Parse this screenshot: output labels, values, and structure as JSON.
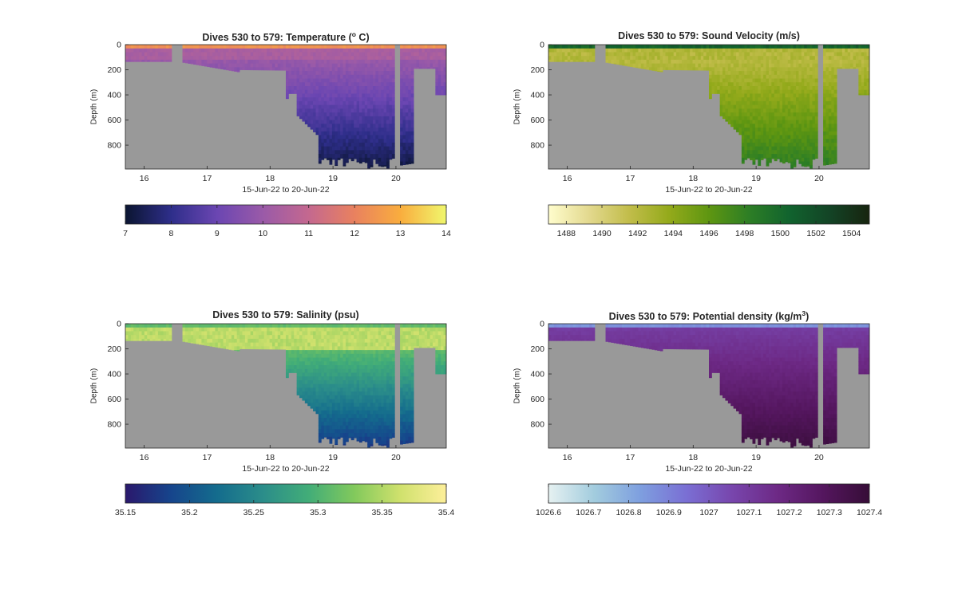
{
  "chart_data": [
    {
      "type": "heatmap",
      "title": "Dives 530 to 579: Temperature",
      "title_unit_base": "o",
      "title_unit_tail": " C)",
      "ylabel": "Depth (m)",
      "xlabel": "15-Jun-22 to 20-Jun-22",
      "x_ticks": [
        "16",
        "17",
        "18",
        "19",
        "20"
      ],
      "y_ticks": [
        "0",
        "200",
        "400",
        "600",
        "800"
      ],
      "colorbar_ticks": [
        "7",
        "8",
        "9",
        "10",
        "11",
        "12",
        "13",
        "14"
      ],
      "colorbar_range": [
        7,
        14
      ],
      "colormap": "thermal",
      "colors": [
        "#0b1531",
        "#2e2e8a",
        "#6b46b2",
        "#9a5aa8",
        "#c4688f",
        "#e9815f",
        "#f9ad3e",
        "#f0f76d"
      ]
    },
    {
      "type": "heatmap",
      "title": "Dives 530 to 579: Sound Velocity (m/s)",
      "ylabel": "Depth (m)",
      "xlabel": "15-Jun-22 to 20-Jun-22",
      "x_ticks": [
        "16",
        "17",
        "18",
        "19",
        "20"
      ],
      "y_ticks": [
        "0",
        "200",
        "400",
        "600",
        "800"
      ],
      "colorbar_ticks": [
        "1488",
        "1490",
        "1492",
        "1494",
        "1496",
        "1498",
        "1500",
        "1502",
        "1504"
      ],
      "colorbar_range": [
        1487,
        1505
      ],
      "colormap": "speed",
      "colors": [
        "#fffdcd",
        "#e3d98f",
        "#c2bd4b",
        "#94aa1b",
        "#5e9611",
        "#2d7e25",
        "#11632e",
        "#134426",
        "#17240f"
      ]
    },
    {
      "type": "heatmap",
      "title": "Dives 530 to 579: Salinity (psu)",
      "ylabel": "Depth (m)",
      "xlabel": "15-Jun-22 to 20-Jun-22",
      "x_ticks": [
        "16",
        "17",
        "18",
        "19",
        "20"
      ],
      "y_ticks": [
        "0",
        "200",
        "400",
        "600",
        "800"
      ],
      "colorbar_ticks": [
        "35.15",
        "35.2",
        "35.25",
        "35.3",
        "35.35",
        "35.4"
      ],
      "colorbar_range": [
        35.15,
        35.4
      ],
      "colormap": "haline",
      "colors": [
        "#2a186c",
        "#16458c",
        "#146c8d",
        "#2b8d8a",
        "#42ad78",
        "#82c95c",
        "#d0e16d",
        "#fdef9a"
      ]
    },
    {
      "type": "heatmap",
      "title": "Dives 530 to 579: Potential density (kg/m",
      "title_unit_base": "3",
      "title_unit_tail": ")",
      "ylabel": "Depth (m)",
      "xlabel": "15-Jun-22 to 20-Jun-22",
      "x_ticks": [
        "16",
        "17",
        "18",
        "19",
        "20"
      ],
      "y_ticks": [
        "0",
        "200",
        "400",
        "600",
        "800"
      ],
      "colorbar_ticks": [
        "1026.6",
        "1026.7",
        "1026.8",
        "1026.9",
        "1027",
        "1027.1",
        "1027.2",
        "1027.3",
        "1027.4"
      ],
      "colorbar_range": [
        1026.6,
        1027.4
      ],
      "colormap": "dense",
      "colors": [
        "#e6f1f1",
        "#a2ccde",
        "#7e9fdf",
        "#7a6fd4",
        "#7846ad",
        "#6d2985",
        "#54165e",
        "#360d37"
      ]
    }
  ],
  "colors": {
    "no_data": "#999999",
    "axis": "#262626"
  }
}
